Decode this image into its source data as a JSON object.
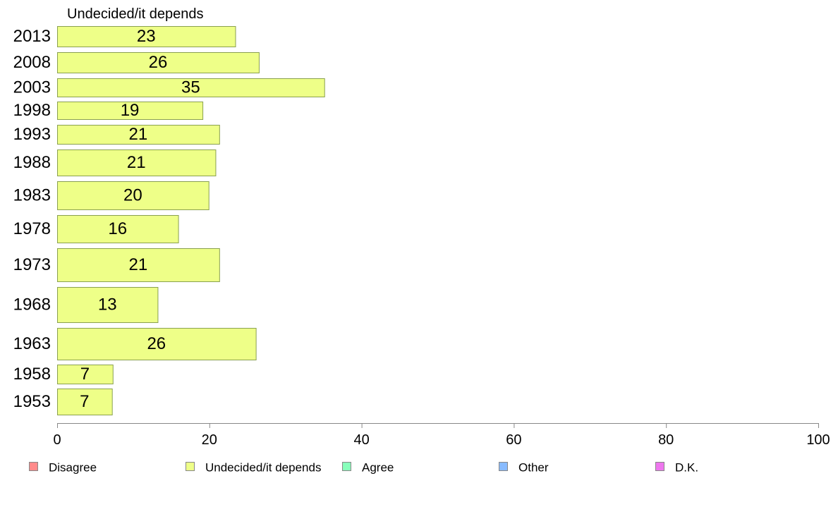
{
  "chart_data": {
    "type": "bar",
    "orientation": "horizontal",
    "title": "Undecided/it depends",
    "categories": [
      "2013",
      "2008",
      "2003",
      "1998",
      "1993",
      "1988",
      "1983",
      "1978",
      "1973",
      "1968",
      "1963",
      "1958",
      "1953"
    ],
    "values": [
      23,
      26,
      35,
      19,
      21,
      21,
      20,
      16,
      21,
      13,
      26,
      7,
      7
    ],
    "plotted_values": [
      23.4,
      26.5,
      35.1,
      19.1,
      21.3,
      20.8,
      19.9,
      15.9,
      21.3,
      13.2,
      26.1,
      7.3,
      7.2
    ],
    "xlim": [
      0,
      100
    ],
    "xticks": [
      "0",
      "20",
      "40",
      "60",
      "80",
      "100"
    ],
    "xlabel": "",
    "ylabel": "",
    "grid": false,
    "bar_color": "#eeff88",
    "bar_stroke": "#8aa050",
    "legend_position": "bottom",
    "legend": [
      {
        "label": "Disagree",
        "color": "#ff8a8a"
      },
      {
        "label": "Undecided/it depends",
        "color": "#eeff88"
      },
      {
        "label": "Agree",
        "color": "#88ffbb"
      },
      {
        "label": "Other",
        "color": "#88bbff"
      },
      {
        "label": "D.K.",
        "color": "#ee77ee"
      }
    ]
  }
}
